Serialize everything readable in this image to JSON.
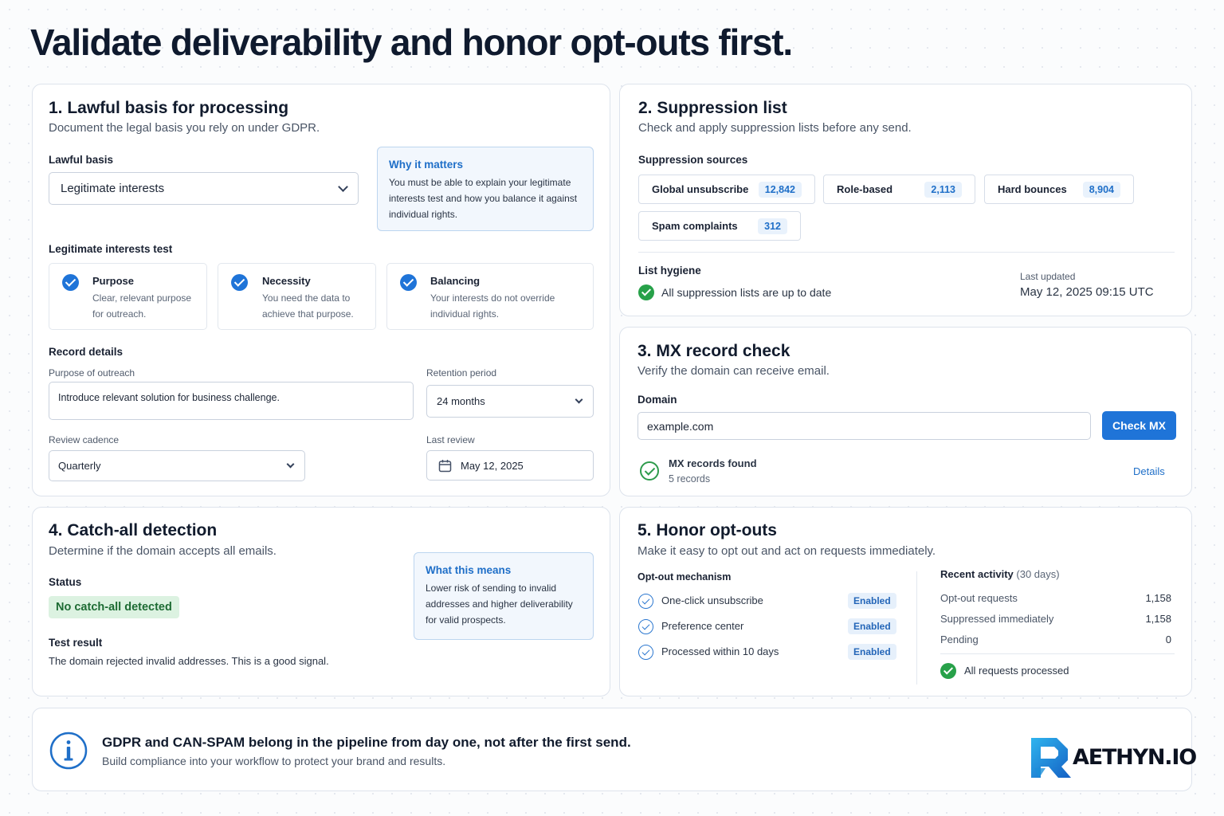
{
  "page": {
    "title": "Validate deliverability and honor opt-outs first."
  },
  "lawful": {
    "title": "1. Lawful basis for processing",
    "subtitle": "Document the legal basis you rely on under GDPR.",
    "basis_label": "Lawful basis",
    "basis_value": "Legitimate interests",
    "why": {
      "title": "Why it matters",
      "text": "You must be able to explain your legitimate interests test and how you balance it against individual rights."
    },
    "lit_label": "Legitimate interests test",
    "tests": [
      {
        "title": "Purpose",
        "desc": "Clear, relevant purpose for outreach."
      },
      {
        "title": "Necessity",
        "desc": "You need the data to achieve that purpose."
      },
      {
        "title": "Balancing",
        "desc": "Your interests do not override individual rights."
      }
    ],
    "record_label": "Record details",
    "purpose_label": "Purpose of outreach",
    "purpose_value": "Introduce relevant solution for business challenge.",
    "retention_label": "Retention period",
    "retention_value": "24 months",
    "cadence_label": "Review cadence",
    "cadence_value": "Quarterly",
    "last_review_label": "Last review",
    "last_review_value": "May 12, 2025"
  },
  "suppression": {
    "title": "2. Suppression list",
    "subtitle": "Check and apply suppression lists before any send.",
    "sources_label": "Suppression sources",
    "sources": [
      {
        "name": "Global unsubscribe",
        "count": "12,842"
      },
      {
        "name": "Role-based",
        "count": "2,113"
      },
      {
        "name": "Hard bounces",
        "count": "8,904"
      },
      {
        "name": "Spam complaints",
        "count": "312"
      }
    ],
    "hygiene_label": "List hygiene",
    "hygiene_status": "All suppression lists are up to date",
    "updated_label": "Last updated",
    "updated_value": "May 12, 2025 09:15 UTC"
  },
  "mx": {
    "title": "3. MX record check",
    "subtitle": "Verify the domain can receive email.",
    "domain_label": "Domain",
    "domain_value": "example.com",
    "button": "Check MX",
    "result_title": "MX records found",
    "result_sub": "5 records",
    "details_link": "Details"
  },
  "catchall": {
    "title": "4. Catch-all detection",
    "subtitle": "Determine if the domain accepts all emails.",
    "status_label": "Status",
    "status_badge": "No catch-all detected",
    "result_label": "Test result",
    "result_text": "The domain rejected invalid addresses. This is a good signal.",
    "means": {
      "title": "What this means",
      "text": "Lower risk of sending to invalid addresses and higher deliverability for valid prospects."
    }
  },
  "optout": {
    "title": "5. Honor opt-outs",
    "subtitle": "Make it easy to opt out and act on requests immediately.",
    "mech_label": "Opt-out mechanism",
    "mechanisms": [
      {
        "name": "One-click unsubscribe",
        "status": "Enabled"
      },
      {
        "name": "Preference center",
        "status": "Enabled"
      },
      {
        "name": "Processed within 10 days",
        "status": "Enabled"
      }
    ],
    "activity_label": "Recent activity",
    "activity_period": "(30 days)",
    "stats": [
      {
        "name": "Opt-out requests",
        "value": "1,158"
      },
      {
        "name": "Suppressed immediately",
        "value": "1,158"
      },
      {
        "name": "Pending",
        "value": "0"
      }
    ],
    "all_done": "All requests processed"
  },
  "footer": {
    "headline": "GDPR and CAN-SPAM belong in the pipeline from day one, not after the first send.",
    "subline": "Build compliance into your workflow to protect your brand and results.",
    "logo_text": "AETHYN.IO"
  },
  "colors": {
    "accent": "#1f74d8",
    "success": "#27a149",
    "text": "#111b2d"
  }
}
